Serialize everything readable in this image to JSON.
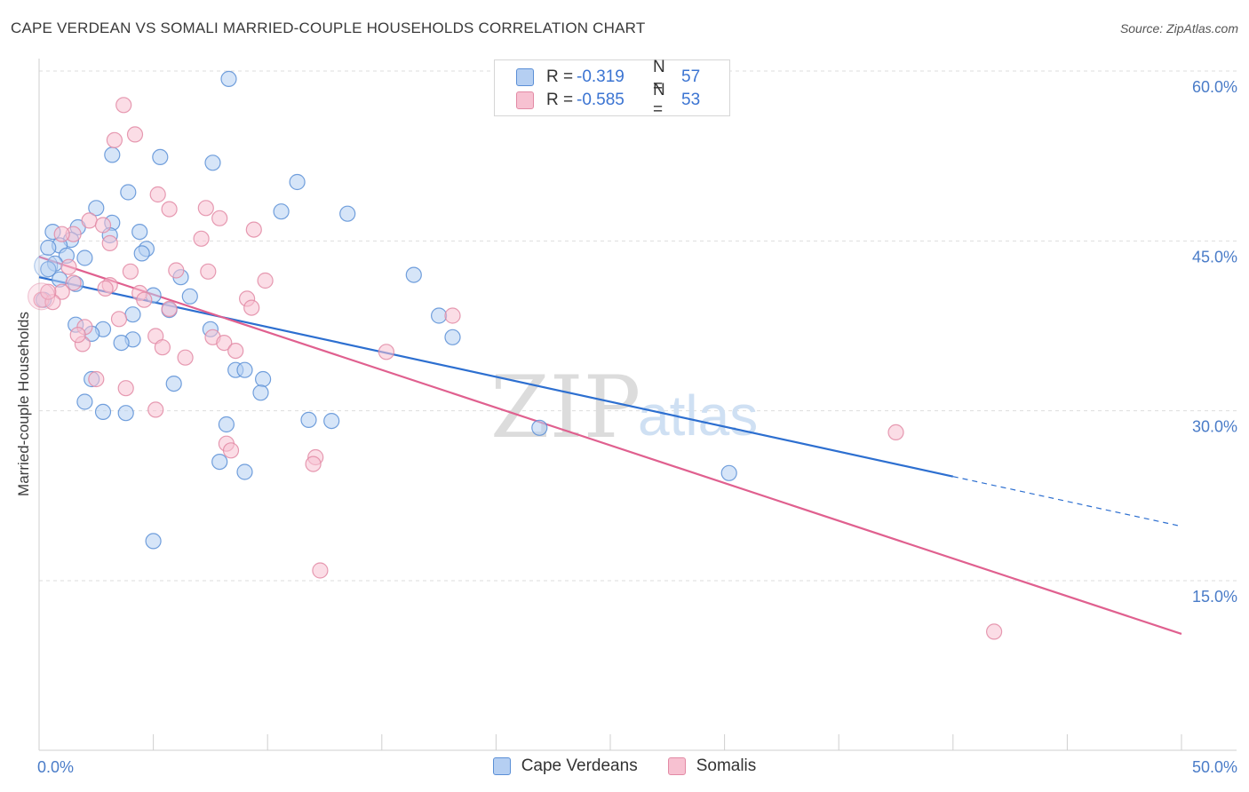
{
  "title": "CAPE VERDEAN VS SOMALI MARRIED-COUPLE HOUSEHOLDS CORRELATION CHART",
  "source": "Source: ZipAtlas.com",
  "watermark": {
    "zip": "ZIP",
    "atlas": "atlas"
  },
  "legend": {
    "rows": [
      {
        "r_label": "R =",
        "r_value": "-0.319",
        "n_label": "N =",
        "n_value": "57"
      },
      {
        "r_label": "R =",
        "r_value": "-0.585",
        "n_label": "N =",
        "n_value": "53"
      }
    ]
  },
  "bottom_legend": {
    "items": [
      "Cape Verdeans",
      "Somalis"
    ]
  },
  "colors": {
    "blue_fill": "#b5cff2",
    "blue_stroke": "#5b8fd6",
    "blue_line": "#2d6fd0",
    "pink_fill": "#f7c1d1",
    "pink_stroke": "#e28aa5",
    "pink_line": "#e0608f",
    "tick_text": "#4a7cc8",
    "grid": "#dddddd"
  },
  "chart_data": {
    "type": "scatter",
    "title": "CAPE VERDEAN VS SOMALI MARRIED-COUPLE HOUSEHOLDS CORRELATION CHART",
    "xlabel": "",
    "ylabel": "Married-couple Households",
    "xlim": [
      0,
      50
    ],
    "ylim": [
      0,
      63
    ],
    "x_tick_labels": [
      "0.0%",
      "50.0%"
    ],
    "y_ticks": [
      15,
      30,
      45,
      60
    ],
    "y_tick_labels": [
      "15.0%",
      "30.0%",
      "45.0%",
      "60.0%"
    ],
    "grid": "horizontal dashed",
    "series": [
      {
        "name": "Cape Verdeans",
        "color": "#b5cff2",
        "points": [
          [
            8.3,
            59.3
          ],
          [
            3.2,
            52.6
          ],
          [
            5.3,
            52.4
          ],
          [
            7.6,
            51.9
          ],
          [
            3.9,
            49.3
          ],
          [
            11.3,
            50.2
          ],
          [
            2.5,
            47.9
          ],
          [
            10.6,
            47.6
          ],
          [
            13.5,
            47.4
          ],
          [
            3.2,
            46.6
          ],
          [
            0.6,
            45.8
          ],
          [
            1.7,
            46.2
          ],
          [
            4.4,
            45.8
          ],
          [
            1.4,
            45.1
          ],
          [
            0.9,
            44.6
          ],
          [
            3.1,
            45.5
          ],
          [
            0.4,
            44.4
          ],
          [
            4.7,
            44.3
          ],
          [
            1.2,
            43.7
          ],
          [
            4.5,
            43.9
          ],
          [
            2.0,
            43.5
          ],
          [
            0.7,
            43.0
          ],
          [
            0.4,
            42.5
          ],
          [
            16.4,
            42.0
          ],
          [
            6.2,
            41.8
          ],
          [
            1.6,
            41.2
          ],
          [
            0.9,
            41.6
          ],
          [
            5.0,
            40.2
          ],
          [
            6.6,
            40.1
          ],
          [
            0.2,
            39.8
          ],
          [
            5.7,
            38.9
          ],
          [
            4.1,
            38.5
          ],
          [
            17.5,
            38.4
          ],
          [
            1.6,
            37.6
          ],
          [
            2.8,
            37.2
          ],
          [
            7.5,
            37.2
          ],
          [
            2.3,
            36.8
          ],
          [
            18.1,
            36.5
          ],
          [
            4.1,
            36.3
          ],
          [
            3.6,
            36.0
          ],
          [
            8.6,
            33.6
          ],
          [
            9.0,
            33.6
          ],
          [
            2.3,
            32.8
          ],
          [
            9.8,
            32.8
          ],
          [
            5.9,
            32.4
          ],
          [
            9.7,
            31.6
          ],
          [
            2.0,
            30.8
          ],
          [
            2.8,
            29.9
          ],
          [
            3.8,
            29.8
          ],
          [
            11.8,
            29.2
          ],
          [
            12.8,
            29.1
          ],
          [
            8.2,
            28.8
          ],
          [
            21.9,
            28.5
          ],
          [
            7.9,
            25.5
          ],
          [
            9.0,
            24.6
          ],
          [
            30.2,
            24.5
          ],
          [
            5.0,
            18.5
          ]
        ]
      },
      {
        "name": "Somalis",
        "color": "#f7c1d1",
        "points": [
          [
            3.7,
            57.0
          ],
          [
            4.2,
            54.4
          ],
          [
            3.3,
            53.9
          ],
          [
            5.2,
            49.1
          ],
          [
            5.7,
            47.8
          ],
          [
            7.3,
            47.9
          ],
          [
            7.9,
            47.0
          ],
          [
            2.2,
            46.8
          ],
          [
            2.8,
            46.4
          ],
          [
            9.4,
            46.0
          ],
          [
            1.5,
            45.6
          ],
          [
            1.0,
            45.6
          ],
          [
            7.1,
            45.2
          ],
          [
            3.1,
            44.8
          ],
          [
            1.3,
            42.7
          ],
          [
            6.0,
            42.4
          ],
          [
            4.0,
            42.3
          ],
          [
            7.4,
            42.3
          ],
          [
            9.9,
            41.5
          ],
          [
            1.5,
            41.3
          ],
          [
            3.1,
            41.1
          ],
          [
            2.9,
            40.8
          ],
          [
            1.0,
            40.5
          ],
          [
            4.4,
            40.4
          ],
          [
            9.1,
            39.9
          ],
          [
            0.1,
            39.8
          ],
          [
            4.6,
            39.8
          ],
          [
            0.6,
            39.6
          ],
          [
            9.3,
            39.1
          ],
          [
            5.7,
            39.0
          ],
          [
            18.1,
            38.4
          ],
          [
            3.5,
            38.1
          ],
          [
            2.0,
            37.4
          ],
          [
            7.6,
            36.5
          ],
          [
            5.1,
            36.6
          ],
          [
            8.1,
            36.0
          ],
          [
            1.9,
            35.9
          ],
          [
            5.4,
            35.6
          ],
          [
            8.6,
            35.3
          ],
          [
            15.2,
            35.2
          ],
          [
            6.4,
            34.7
          ],
          [
            2.5,
            32.8
          ],
          [
            3.8,
            32.0
          ],
          [
            5.1,
            30.1
          ],
          [
            37.5,
            28.1
          ],
          [
            8.2,
            27.1
          ],
          [
            8.4,
            26.5
          ],
          [
            12.1,
            25.9
          ],
          [
            12.0,
            25.3
          ],
          [
            12.3,
            15.9
          ],
          [
            41.8,
            10.5
          ],
          [
            0.4,
            40.5
          ],
          [
            1.7,
            36.7
          ]
        ]
      }
    ],
    "trend_lines": [
      {
        "series": "Cape Verdeans",
        "solid": [
          [
            0.0,
            41.8
          ],
          [
            40.0,
            24.2
          ]
        ],
        "dashed": [
          [
            40.0,
            24.2
          ],
          [
            50.0,
            19.8
          ]
        ]
      },
      {
        "series": "Somalis",
        "solid": [
          [
            0.0,
            43.6
          ],
          [
            50.0,
            10.3
          ]
        ]
      }
    ]
  }
}
